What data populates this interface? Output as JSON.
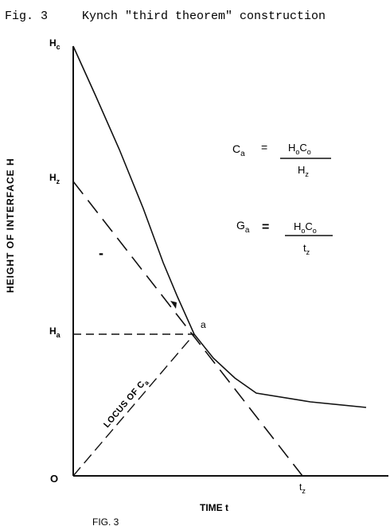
{
  "header": {
    "fig_label": "Fig. 3",
    "title": "Kynch \"third theorem\" construction"
  },
  "axes": {
    "ylabel": "HEIGHT OF INTERFACE H",
    "xlabel": "TIME t",
    "origin": "O",
    "tick_hc": "H",
    "tick_hc_sub": "c",
    "tick_hz": "H",
    "tick_hz_sub": "z",
    "tick_ha": "H",
    "tick_ha_sub": "a",
    "tick_tz": "t",
    "tick_tz_sub": "z"
  },
  "annotations": {
    "point_a": "a",
    "locus": "LOCUS OF C",
    "locus_sub": "a",
    "dash_mark": "-"
  },
  "equations": {
    "ca_lhs": "C",
    "ca_lhs_sub": "a",
    "ca_eq": "=",
    "ca_num": "H",
    "ca_num_sub1": "o",
    "ca_num_mid": "C",
    "ca_num_sub2": "o",
    "ca_den": "H",
    "ca_den_sub": "z",
    "ga_lhs": "G",
    "ga_lhs_sub": "a",
    "ga_eq": "=",
    "ga_num": "H",
    "ga_num_sub1": "o",
    "ga_num_mid": "C",
    "ga_num_sub2": "o",
    "ga_den": "t",
    "ga_den_sub": "z"
  },
  "footer": {
    "caption": "FIG. 3"
  }
}
